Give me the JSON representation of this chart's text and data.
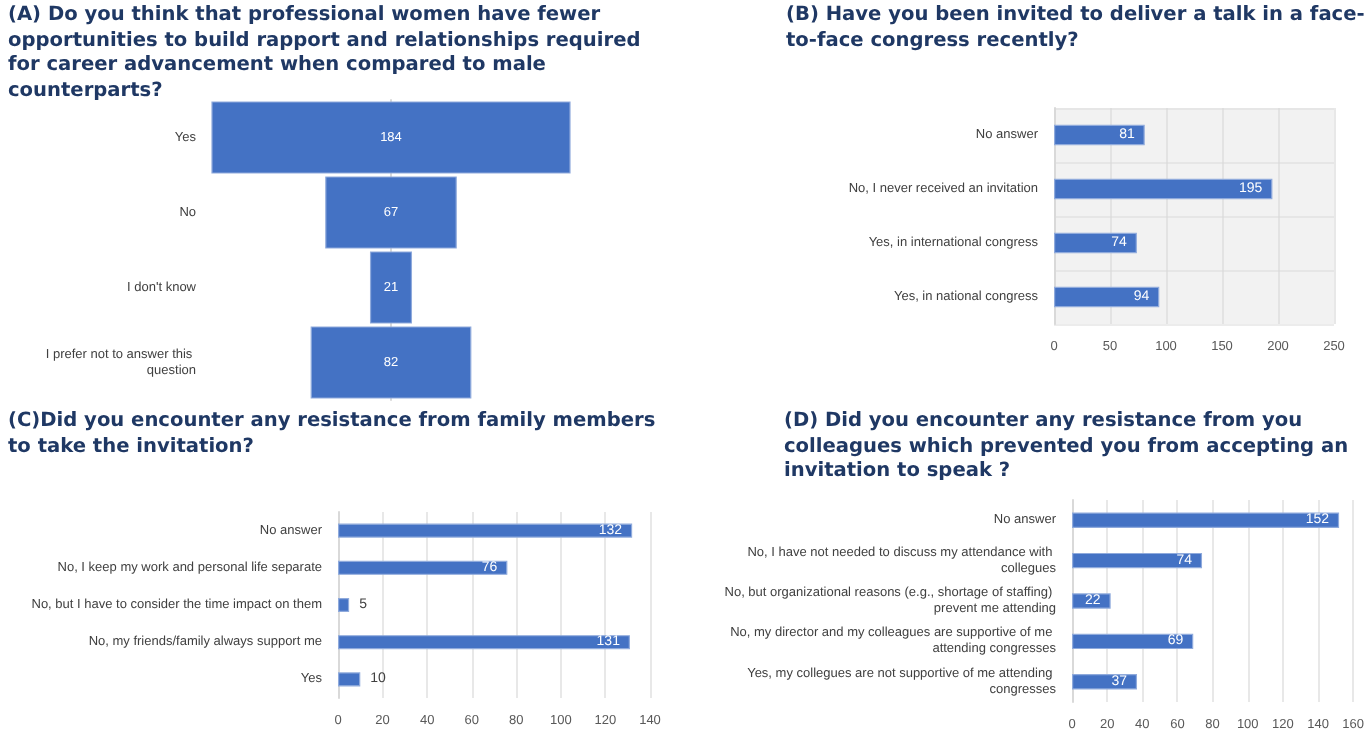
{
  "chart_data": [
    {
      "type": "other",
      "title": "(A) Do you think that professional women have fewer opportunities to build rapport and relationships required for career advancement when compared to male counterparts?",
      "categories": [
        "Yes",
        "No",
        "I don't know",
        "I prefer not to answer this question"
      ],
      "values": [
        184,
        67,
        21,
        82
      ],
      "color": "#4472c4",
      "data_labels": true
    },
    {
      "type": "bar",
      "orientation": "horizontal",
      "title": "(B) Have you been invited to deliver a talk in a face-to-face congress recently?",
      "categories": [
        "No answer",
        "No, I never received an invitation",
        "Yes, in international congress",
        "Yes, in national congress"
      ],
      "values": [
        81,
        195,
        74,
        94
      ],
      "color": "#4472c4",
      "xlim": [
        0,
        250
      ],
      "xticks": [
        0,
        50,
        100,
        150,
        200,
        250
      ],
      "grid": true,
      "data_labels": true
    },
    {
      "type": "bar",
      "orientation": "horizontal",
      "title": "(C)Did you encounter any resistance from family members to take the invitation?",
      "categories": [
        "No answer",
        "No, I keep my work and personal life separate",
        "No, but I have to consider the time impact on them",
        "No, my friends/family always support me",
        "Yes"
      ],
      "values": [
        132,
        76,
        5,
        131,
        10
      ],
      "color": "#4472c4",
      "xlim": [
        0,
        140
      ],
      "xticks": [
        0,
        20,
        40,
        60,
        80,
        100,
        120,
        140
      ],
      "grid": "x",
      "data_labels": true
    },
    {
      "type": "bar",
      "orientation": "horizontal",
      "title": "(D) Did you encounter any resistance from you colleagues which prevented you from accepting an invitation to speak ?",
      "categories": [
        "No answer",
        "No, I have not needed to discuss my attendance with collegues",
        "No, but organizational reasons (e.g., shortage of staffing) prevent me attending",
        "No, my director and my colleagues are supportive of me attending congresses",
        "Yes, my collegues are not supportive of me attending congresses"
      ],
      "values": [
        152,
        74,
        22,
        69,
        37
      ],
      "color": "#4472c4",
      "xlim": [
        0,
        160
      ],
      "xticks": [
        0,
        20,
        40,
        60,
        80,
        100,
        120,
        140,
        160
      ],
      "grid": "x",
      "data_labels": true
    }
  ]
}
